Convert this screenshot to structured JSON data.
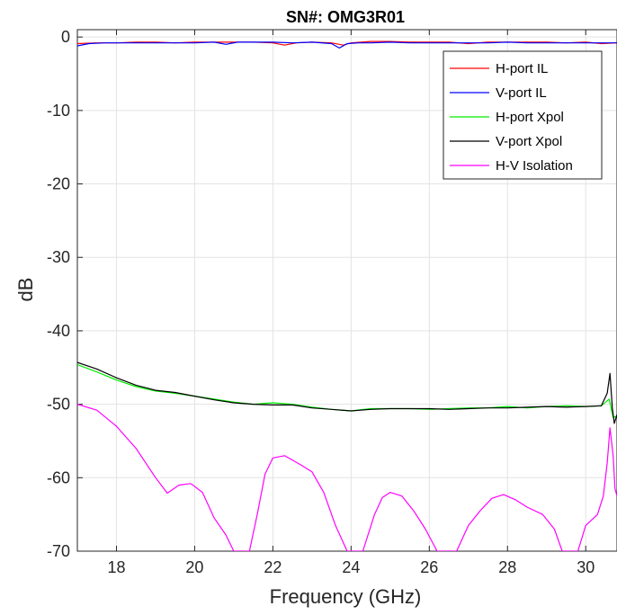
{
  "chart_data": {
    "type": "line",
    "title": "SN#: OMG3R01",
    "xlabel": "Frequency (GHz)",
    "ylabel": "dB",
    "xlim": [
      17,
      30.8
    ],
    "ylim": [
      -70,
      1
    ],
    "xticks": [
      18,
      20,
      22,
      24,
      26,
      28,
      30
    ],
    "yticks": [
      0,
      -10,
      -20,
      -30,
      -40,
      -50,
      -60,
      -70
    ],
    "grid": true,
    "legend_position": "top-right",
    "series": [
      {
        "name": "H-port IL",
        "color": "#ff0000",
        "points": [
          [
            17,
            -0.9
          ],
          [
            17.5,
            -0.8
          ],
          [
            18,
            -0.8
          ],
          [
            18.5,
            -0.7
          ],
          [
            19,
            -0.7
          ],
          [
            19.5,
            -0.8
          ],
          [
            20,
            -0.7
          ],
          [
            20.5,
            -0.7
          ],
          [
            21,
            -0.7
          ],
          [
            21.5,
            -0.7
          ],
          [
            22,
            -0.8
          ],
          [
            22.3,
            -1.1
          ],
          [
            22.6,
            -0.8
          ],
          [
            23,
            -0.7
          ],
          [
            23.5,
            -0.8
          ],
          [
            23.8,
            -1.1
          ],
          [
            24,
            -0.8
          ],
          [
            24.5,
            -0.6
          ],
          [
            25,
            -0.6
          ],
          [
            25.5,
            -0.7
          ],
          [
            26,
            -0.7
          ],
          [
            26.5,
            -0.7
          ],
          [
            27,
            -0.9
          ],
          [
            27.5,
            -0.7
          ],
          [
            28,
            -0.7
          ],
          [
            28.5,
            -0.7
          ],
          [
            29,
            -0.7
          ],
          [
            29.5,
            -0.8
          ],
          [
            30,
            -0.7
          ],
          [
            30.4,
            -0.9
          ],
          [
            30.8,
            -0.8
          ]
        ]
      },
      {
        "name": "V-port IL",
        "color": "#0000ff",
        "points": [
          [
            17,
            -1.2
          ],
          [
            17.3,
            -0.9
          ],
          [
            17.7,
            -0.8
          ],
          [
            18,
            -0.8
          ],
          [
            18.5,
            -0.8
          ],
          [
            19,
            -0.8
          ],
          [
            19.5,
            -0.8
          ],
          [
            20,
            -0.8
          ],
          [
            20.5,
            -0.7
          ],
          [
            20.8,
            -1.0
          ],
          [
            21.1,
            -0.7
          ],
          [
            21.5,
            -0.7
          ],
          [
            22,
            -0.7
          ],
          [
            22.5,
            -0.8
          ],
          [
            23,
            -0.7
          ],
          [
            23.5,
            -0.9
          ],
          [
            23.7,
            -1.5
          ],
          [
            23.9,
            -0.9
          ],
          [
            24.2,
            -0.8
          ],
          [
            24.5,
            -0.8
          ],
          [
            25,
            -0.7
          ],
          [
            25.5,
            -0.8
          ],
          [
            26,
            -0.8
          ],
          [
            26.5,
            -0.8
          ],
          [
            27,
            -0.8
          ],
          [
            27.5,
            -0.8
          ],
          [
            28,
            -0.7
          ],
          [
            28.5,
            -0.8
          ],
          [
            29,
            -0.8
          ],
          [
            29.5,
            -0.8
          ],
          [
            30,
            -0.8
          ],
          [
            30.5,
            -0.8
          ],
          [
            30.8,
            -0.8
          ]
        ]
      },
      {
        "name": "H-port Xpol",
        "color": "#00ee00",
        "points": [
          [
            17,
            -44.6
          ],
          [
            17.5,
            -45.6
          ],
          [
            18,
            -46.7
          ],
          [
            18.5,
            -47.6
          ],
          [
            19,
            -48.2
          ],
          [
            19.5,
            -48.5
          ],
          [
            20,
            -48.9
          ],
          [
            20.5,
            -49.3
          ],
          [
            21,
            -49.7
          ],
          [
            21.5,
            -50.0
          ],
          [
            22,
            -49.8
          ],
          [
            22.5,
            -50.0
          ],
          [
            23,
            -50.4
          ],
          [
            23.5,
            -50.7
          ],
          [
            24,
            -50.9
          ],
          [
            24.5,
            -50.6
          ],
          [
            25,
            -50.6
          ],
          [
            25.5,
            -50.6
          ],
          [
            26,
            -50.7
          ],
          [
            26.5,
            -50.6
          ],
          [
            27,
            -50.5
          ],
          [
            27.5,
            -50.5
          ],
          [
            28,
            -50.3
          ],
          [
            28.5,
            -50.5
          ],
          [
            29,
            -50.3
          ],
          [
            29.5,
            -50.2
          ],
          [
            30,
            -50.3
          ],
          [
            30.4,
            -50.2
          ],
          [
            30.6,
            -49.3
          ],
          [
            30.7,
            -51.8
          ],
          [
            30.8,
            -51.6
          ]
        ]
      },
      {
        "name": "V-port Xpol",
        "color": "#000000",
        "points": [
          [
            17,
            -44.3
          ],
          [
            17.5,
            -45.2
          ],
          [
            18,
            -46.4
          ],
          [
            18.5,
            -47.4
          ],
          [
            19,
            -48.1
          ],
          [
            19.5,
            -48.4
          ],
          [
            20,
            -48.9
          ],
          [
            20.5,
            -49.4
          ],
          [
            21,
            -49.8
          ],
          [
            21.5,
            -50.0
          ],
          [
            22,
            -50.1
          ],
          [
            22.5,
            -50.1
          ],
          [
            23,
            -50.5
          ],
          [
            23.5,
            -50.7
          ],
          [
            24,
            -50.9
          ],
          [
            24.5,
            -50.7
          ],
          [
            25,
            -50.6
          ],
          [
            25.5,
            -50.6
          ],
          [
            26,
            -50.6
          ],
          [
            26.5,
            -50.7
          ],
          [
            27,
            -50.6
          ],
          [
            27.5,
            -50.5
          ],
          [
            28,
            -50.5
          ],
          [
            28.5,
            -50.4
          ],
          [
            29,
            -50.3
          ],
          [
            29.5,
            -50.4
          ],
          [
            30,
            -50.3
          ],
          [
            30.4,
            -50.2
          ],
          [
            30.55,
            -48.5
          ],
          [
            30.62,
            -45.8
          ],
          [
            30.68,
            -50.5
          ],
          [
            30.73,
            -52.6
          ],
          [
            30.8,
            -51.4
          ]
        ]
      },
      {
        "name": "H-V Isolation",
        "color": "#ff00ff",
        "points": [
          [
            17,
            -50.0
          ],
          [
            17.5,
            -50.8
          ],
          [
            18,
            -53.0
          ],
          [
            18.5,
            -56.0
          ],
          [
            19,
            -60.0
          ],
          [
            19.3,
            -62.1
          ],
          [
            19.6,
            -61.0
          ],
          [
            19.9,
            -60.8
          ],
          [
            20.2,
            -62.0
          ],
          [
            20.5,
            -65.5
          ],
          [
            20.8,
            -67.8
          ],
          [
            21.0,
            -70.0
          ],
          [
            21.4,
            -70.0
          ],
          [
            21.6,
            -65.0
          ],
          [
            21.8,
            -59.5
          ],
          [
            22.0,
            -57.3
          ],
          [
            22.3,
            -57.0
          ],
          [
            22.7,
            -58.2
          ],
          [
            23.0,
            -59.2
          ],
          [
            23.3,
            -62.0
          ],
          [
            23.6,
            -66.5
          ],
          [
            23.9,
            -70.0
          ],
          [
            24.3,
            -70.0
          ],
          [
            24.6,
            -65.0
          ],
          [
            24.8,
            -62.7
          ],
          [
            25.0,
            -62.0
          ],
          [
            25.3,
            -62.5
          ],
          [
            25.6,
            -64.5
          ],
          [
            25.9,
            -67.0
          ],
          [
            26.2,
            -70.0
          ],
          [
            26.7,
            -70.0
          ],
          [
            27.0,
            -66.5
          ],
          [
            27.3,
            -64.5
          ],
          [
            27.6,
            -62.8
          ],
          [
            27.9,
            -62.3
          ],
          [
            28.2,
            -63.0
          ],
          [
            28.5,
            -64.0
          ],
          [
            28.9,
            -65.0
          ],
          [
            29.2,
            -67.0
          ],
          [
            29.4,
            -70.0
          ],
          [
            29.8,
            -70.0
          ],
          [
            30.0,
            -66.5
          ],
          [
            30.3,
            -65.0
          ],
          [
            30.45,
            -62.5
          ],
          [
            30.55,
            -58.0
          ],
          [
            30.62,
            -53.2
          ],
          [
            30.7,
            -57.0
          ],
          [
            30.75,
            -61.5
          ],
          [
            30.8,
            -62.5
          ]
        ]
      }
    ]
  }
}
